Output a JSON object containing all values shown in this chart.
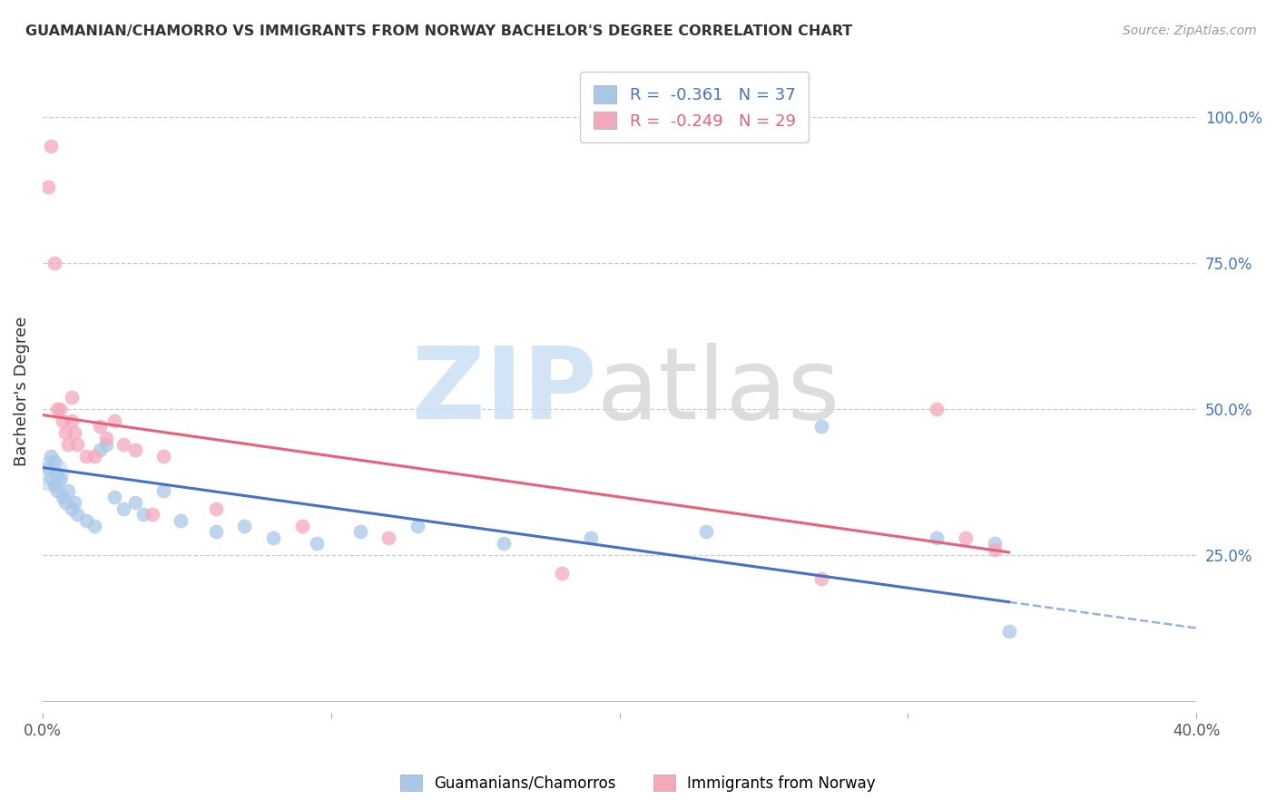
{
  "title": "GUAMANIAN/CHAMORRO VS IMMIGRANTS FROM NORWAY BACHELOR'S DEGREE CORRELATION CHART",
  "source": "Source: ZipAtlas.com",
  "ylabel": "Bachelor's Degree",
  "xlim": [
    0.0,
    0.4
  ],
  "ylim": [
    -0.02,
    1.08
  ],
  "blue_R": -0.361,
  "blue_N": 37,
  "pink_R": -0.249,
  "pink_N": 29,
  "blue_color": "#a8c8e8",
  "pink_color": "#f4a8bc",
  "blue_line_color": "#4472c4",
  "pink_line_color": "#e8607a",
  "grid_color": "#cccccc",
  "background_color": "#ffffff",
  "right_tick_color": "#4472c4",
  "legend_blue_text_color": "#4472c4",
  "legend_pink_text_color": "#e8607a",
  "blue_x": [
    0.002,
    0.003,
    0.003,
    0.004,
    0.004,
    0.005,
    0.005,
    0.006,
    0.007,
    0.008,
    0.009,
    0.01,
    0.011,
    0.012,
    0.015,
    0.018,
    0.02,
    0.022,
    0.025,
    0.028,
    0.032,
    0.035,
    0.042,
    0.048,
    0.06,
    0.07,
    0.08,
    0.095,
    0.11,
    0.13,
    0.16,
    0.19,
    0.23,
    0.27,
    0.31,
    0.33,
    0.335
  ],
  "blue_y": [
    0.4,
    0.42,
    0.38,
    0.41,
    0.37,
    0.39,
    0.36,
    0.38,
    0.35,
    0.34,
    0.36,
    0.33,
    0.34,
    0.32,
    0.31,
    0.3,
    0.43,
    0.44,
    0.35,
    0.33,
    0.34,
    0.32,
    0.36,
    0.31,
    0.29,
    0.3,
    0.28,
    0.27,
    0.29,
    0.3,
    0.27,
    0.28,
    0.29,
    0.47,
    0.28,
    0.27,
    0.12
  ],
  "pink_x": [
    0.002,
    0.003,
    0.004,
    0.005,
    0.006,
    0.007,
    0.008,
    0.009,
    0.01,
    0.01,
    0.011,
    0.012,
    0.015,
    0.018,
    0.02,
    0.022,
    0.025,
    0.028,
    0.032,
    0.038,
    0.042,
    0.06,
    0.09,
    0.12,
    0.18,
    0.27,
    0.31,
    0.32,
    0.33
  ],
  "pink_y": [
    0.88,
    0.95,
    0.75,
    0.5,
    0.5,
    0.48,
    0.46,
    0.44,
    0.52,
    0.48,
    0.46,
    0.44,
    0.42,
    0.42,
    0.47,
    0.45,
    0.48,
    0.44,
    0.43,
    0.32,
    0.42,
    0.33,
    0.3,
    0.28,
    0.22,
    0.21,
    0.5,
    0.28,
    0.26
  ],
  "blue_line_x0": 0.0,
  "blue_line_x_solid_end": 0.335,
  "blue_line_x_dash_end": 0.4,
  "pink_line_x0": 0.0,
  "pink_line_x_end": 0.335
}
